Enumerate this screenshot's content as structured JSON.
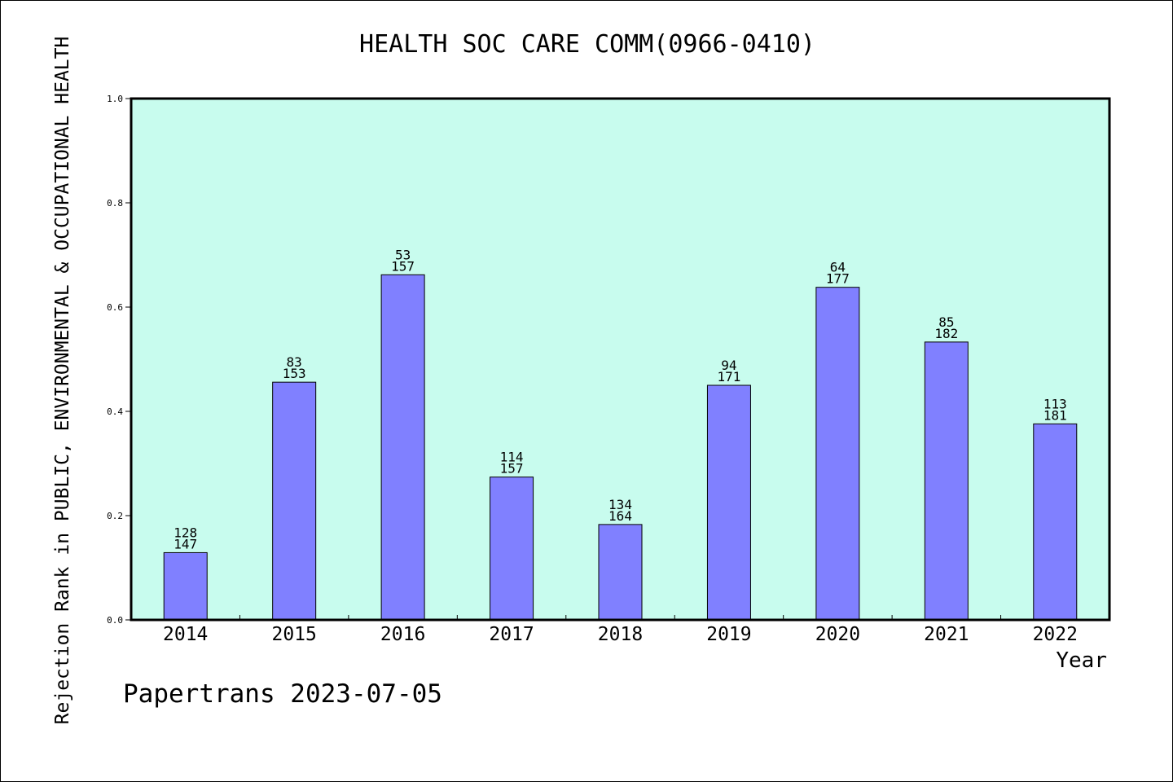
{
  "chart_data": {
    "type": "bar",
    "title": "HEALTH SOC CARE COMM(0966-0410)",
    "xlabel": "Year",
    "ylabel": "Rejection Rank in PUBLIC, ENVIRONMENTAL & OCCUPATIONAL HEALTH",
    "ylim": [
      0,
      1.0
    ],
    "yticks": [
      "0.0",
      "0.2",
      "0.4",
      "0.6",
      "0.8",
      "1.0"
    ],
    "categories": [
      "2014",
      "2015",
      "2016",
      "2017",
      "2018",
      "2019",
      "2020",
      "2021",
      "2022"
    ],
    "values": [
      0.129,
      0.456,
      0.662,
      0.274,
      0.183,
      0.45,
      0.638,
      0.533,
      0.376
    ],
    "rank": [
      "128",
      "83",
      "53",
      "114",
      "134",
      "94",
      "64",
      "85",
      "113"
    ],
    "total": [
      "147",
      "153",
      "157",
      "157",
      "164",
      "171",
      "177",
      "182",
      "181"
    ],
    "grid": false,
    "colors": {
      "bar": "#8080ff",
      "plot_bg": "#c8fcee",
      "axis": "#000000"
    }
  },
  "footer": "Papertrans 2023-07-05"
}
